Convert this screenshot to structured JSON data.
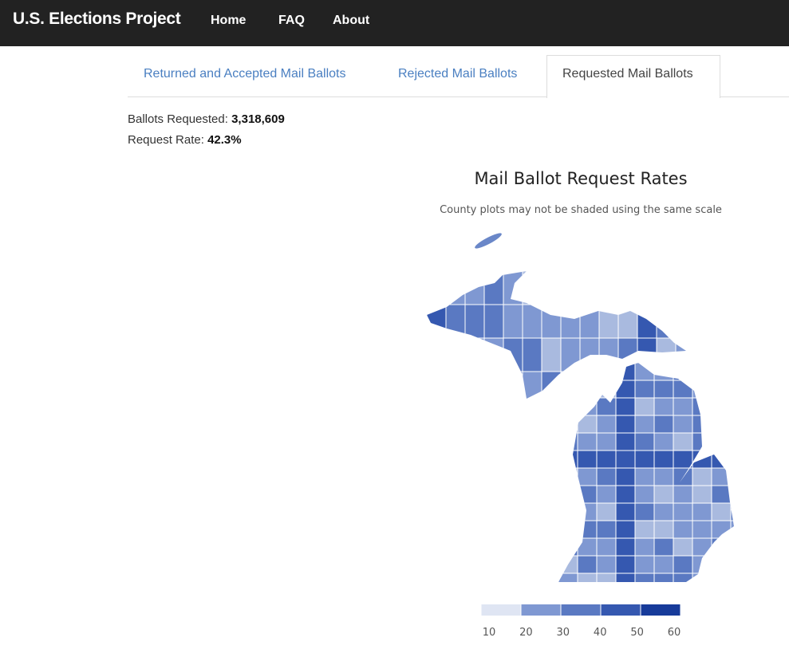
{
  "navbar": {
    "brand": "U.S. Elections Project",
    "links": [
      "Home",
      "FAQ",
      "About"
    ]
  },
  "tabs": {
    "items": [
      "Returned and Accepted Mail Ballots",
      "Rejected Mail Ballots",
      "Requested Mail Ballots"
    ],
    "active": 2
  },
  "stats": [
    {
      "label": "Ballots Requested:",
      "value": "3,318,609"
    },
    {
      "label": "Request Rate:",
      "value": "42.3%"
    }
  ],
  "map": {
    "title": "Mail Ballot Request Rates",
    "subtitle": "County plots may not be shaded using the same scale",
    "legend": {
      "ticks": [
        10,
        20,
        30,
        40,
        50,
        60
      ],
      "colors": [
        "#dfe5f3",
        "#a9badf",
        "#7f98d2",
        "#5a79c2",
        "#3558b0",
        "#173b9a"
      ]
    }
  }
}
